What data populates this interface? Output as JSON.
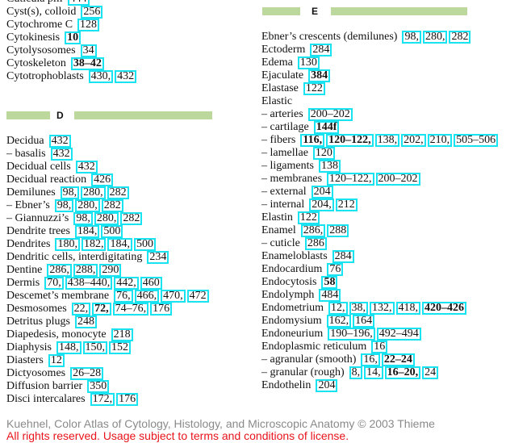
{
  "columns": [
    {
      "blocks": [
        {
          "entries": [
            {
              "term": "Cuticula pili",
              "refs": [
                "444"
              ]
            },
            {
              "term": "Cyst(s), colloid",
              "refs": [
                "256"
              ]
            },
            {
              "term": "Cytochrome C",
              "refs": [
                "128"
              ]
            },
            {
              "term": "Cytokinesis",
              "refs": [
                {
                  "page": "10",
                  "bold": true
                }
              ]
            },
            {
              "term": "Cytolysosomes",
              "refs": [
                "34"
              ]
            },
            {
              "term": "Cytoskeleton",
              "refs": [
                {
                  "page": "38–42",
                  "bold": true
                }
              ]
            },
            {
              "term": "Cytotrophoblasts",
              "refs": [
                "430",
                "432"
              ]
            }
          ]
        },
        {
          "header": "D",
          "entries": [
            {
              "term": "Decidua",
              "refs": [
                "432"
              ]
            },
            {
              "term": "– basalis",
              "refs": [
                "432"
              ]
            },
            {
              "term": "Decidual cells",
              "refs": [
                "432"
              ]
            },
            {
              "term": "Decidual reaction",
              "refs": [
                "426"
              ]
            },
            {
              "term": "Demilunes",
              "refs": [
                "98",
                "280",
                "282"
              ]
            },
            {
              "term": "– Ebner’s",
              "refs": [
                "98",
                "280",
                "282"
              ]
            },
            {
              "term": "– Giannuzzi’s",
              "refs": [
                "98",
                "280",
                "282"
              ]
            },
            {
              "term": "Dendrite trees",
              "refs": [
                "184",
                "500"
              ]
            },
            {
              "term": "Dendrites",
              "refs": [
                "180",
                "182",
                "184",
                "500"
              ]
            },
            {
              "term": "Dendritic cells, interdigitating",
              "refs": [
                "234"
              ]
            },
            {
              "term": "Dentine",
              "refs": [
                "286",
                "288",
                "290"
              ]
            },
            {
              "term": "Dermis",
              "refs": [
                "70",
                "438–440",
                "442",
                "460"
              ]
            },
            {
              "term": "Descemet’s membrane",
              "refs": [
                "76",
                "466",
                "470",
                "472"
              ]
            },
            {
              "term": "Desmosomes",
              "refs": [
                "22",
                {
                  "page": "72",
                  "bold": true
                },
                "74–76",
                "176"
              ]
            },
            {
              "term": "Detritus plugs",
              "refs": [
                "248"
              ]
            },
            {
              "term": "Diapedesis, monocyte",
              "refs": [
                "218"
              ]
            },
            {
              "term": "Diaphysis",
              "refs": [
                "148",
                "150",
                "152"
              ]
            },
            {
              "term": "Diasters",
              "refs": [
                "12"
              ]
            },
            {
              "term": "Dictyosomes",
              "refs": [
                "26–28"
              ]
            },
            {
              "term": "Diffusion barrier",
              "refs": [
                "350"
              ]
            },
            {
              "term": "Disci intercalares",
              "refs": [
                "172",
                "176"
              ]
            }
          ]
        }
      ]
    },
    {
      "blocks": [
        {
          "header": "E",
          "entries": [
            {
              "term": "Ebner’s crescents (demilunes)",
              "refs": [
                "98",
                "280",
                "282"
              ]
            },
            {
              "term": "Ectoderm",
              "refs": [
                "284"
              ]
            },
            {
              "term": "Edema",
              "refs": [
                "130"
              ]
            },
            {
              "term": "Ejaculate",
              "refs": [
                {
                  "page": "384",
                  "bold": true
                }
              ]
            },
            {
              "term": "Elastase",
              "refs": [
                "122"
              ]
            },
            {
              "term": "Elastic",
              "refs": []
            },
            {
              "term": "– arteries",
              "refs": [
                "200–202"
              ]
            },
            {
              "term": "– cartilage",
              "refs": [
                {
                  "page": "144f",
                  "bold": true
                }
              ]
            },
            {
              "term": "– fibers",
              "refs": [
                {
                  "page": "116",
                  "bold": true
                },
                {
                  "page": "120–122",
                  "bold": true
                },
                "138",
                "202",
                "210",
                "505–506"
              ]
            },
            {
              "term": "– lamellae",
              "refs": [
                "120"
              ]
            },
            {
              "term": "– ligaments",
              "refs": [
                "138"
              ]
            },
            {
              "term": "– membranes",
              "refs": [
                "120–122",
                "200–202"
              ]
            },
            {
              "term": "– external",
              "refs": [
                "204"
              ]
            },
            {
              "term": "– internal",
              "refs": [
                "204",
                "212"
              ]
            },
            {
              "term": "Elastin",
              "refs": [
                "122"
              ]
            },
            {
              "term": "Enamel",
              "refs": [
                "286",
                "288"
              ]
            },
            {
              "term": "– cuticle",
              "refs": [
                "286"
              ]
            },
            {
              "term": "Enameloblasts",
              "refs": [
                "284"
              ]
            },
            {
              "term": "Endocardium",
              "refs": [
                "76"
              ]
            },
            {
              "term": "Endocytosis",
              "refs": [
                {
                  "page": "58",
                  "bold": true
                }
              ]
            },
            {
              "term": "Endolymph",
              "refs": [
                "484"
              ]
            },
            {
              "term": "Endometrium",
              "refs": [
                "12",
                "38",
                "132",
                "418",
                {
                  "page": "420–426",
                  "bold": true
                }
              ]
            },
            {
              "term": "Endomysium",
              "refs": [
                "162",
                "164"
              ]
            },
            {
              "term": "Endoneurium",
              "refs": [
                "190–196",
                "492–494"
              ]
            },
            {
              "term": "Endoplasmic reticulum",
              "refs": [
                "16"
              ]
            },
            {
              "term": "– agranular (smooth)",
              "refs": [
                "16",
                {
                  "page": "22–24",
                  "bold": true
                }
              ]
            },
            {
              "term": "– granular (rough)",
              "refs": [
                "8",
                "14",
                {
                  "page": "16–20",
                  "bold": true
                },
                "24"
              ]
            },
            {
              "term": "Endothelin",
              "refs": [
                "204"
              ]
            }
          ]
        }
      ]
    }
  ],
  "footer": {
    "copyright": "Kuehnel, Color Atlas of Cytology, Histology, and Microscopic Anatomy © 2003 Thieme",
    "license": "All rights reserved. Usage subject to terms and conditions of license."
  }
}
